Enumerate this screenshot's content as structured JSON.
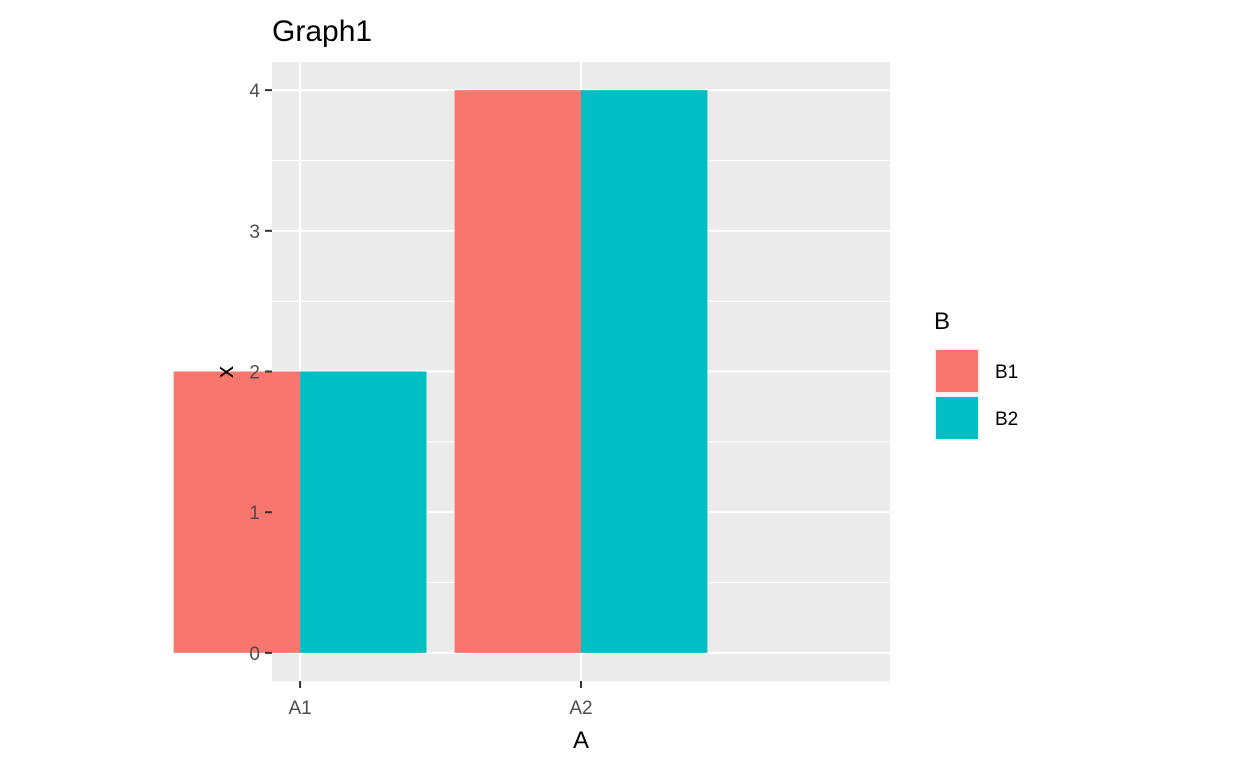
{
  "chart_data": {
    "type": "bar",
    "title": "Graph1",
    "xlabel": "A",
    "ylabel": "x",
    "categories": [
      "A1",
      "A2"
    ],
    "series": [
      {
        "name": "B1",
        "values": [
          2,
          4
        ],
        "color": "#F8766D"
      },
      {
        "name": "B2",
        "values": [
          2,
          4
        ],
        "color": "#00BFC4"
      }
    ],
    "ylim": [
      -0.2,
      4.2
    ],
    "yticks": [
      0,
      1,
      2,
      3,
      4
    ],
    "ytick_labels": [
      "0",
      "1",
      "2",
      "3",
      "4"
    ],
    "grid": true,
    "panel_background": "#EBEBEB",
    "gridline_color": "#FFFFFF",
    "legend": {
      "title": "B",
      "placement": "right",
      "entries": [
        "B1",
        "B2"
      ]
    }
  }
}
